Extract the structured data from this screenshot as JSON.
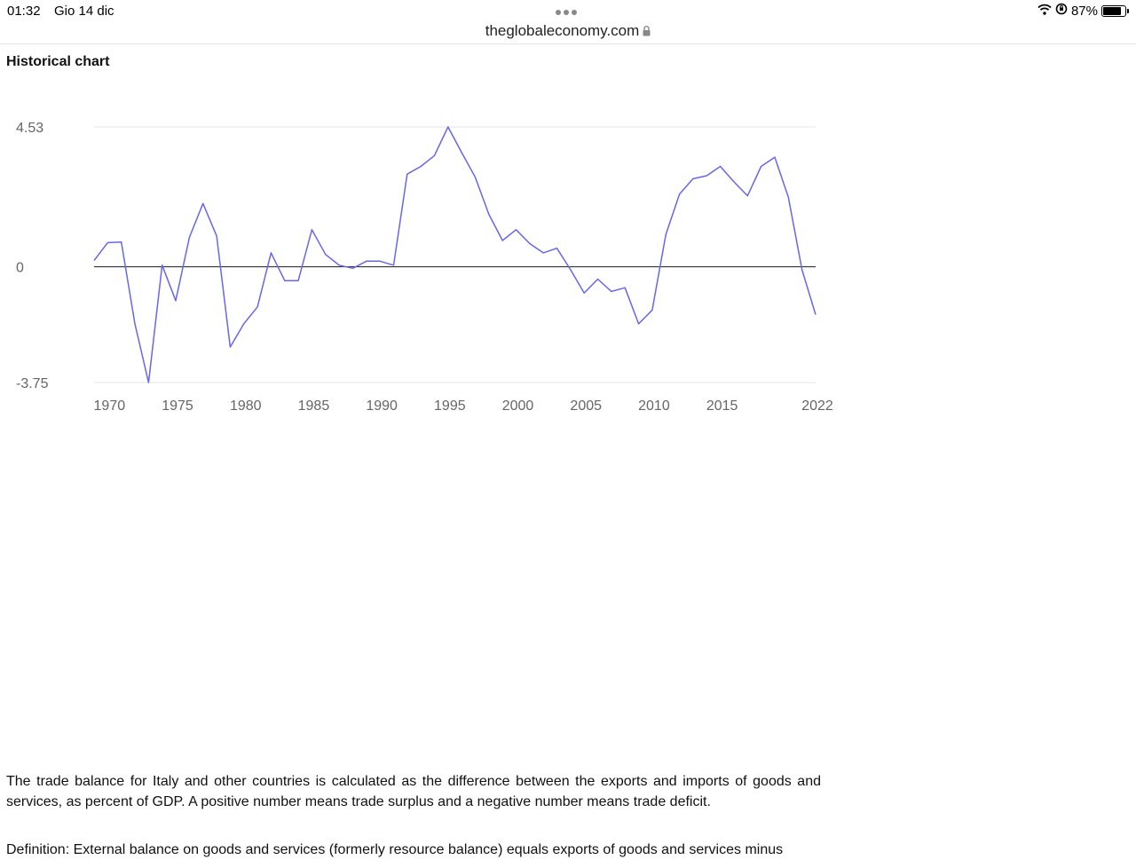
{
  "status_bar": {
    "time": "01:32",
    "date": "Gio 14 dic",
    "battery": "87%",
    "battery_level": 0.87
  },
  "browser": {
    "url": "theglobaleconomy.com"
  },
  "section": {
    "title": "Historical chart"
  },
  "chart_data": {
    "type": "line",
    "title": "",
    "xlabel": "",
    "ylabel": "",
    "ylim": [
      -3.75,
      4.53
    ],
    "y_ticks": [
      "4.53",
      "0",
      "-3.75"
    ],
    "x_ticks": [
      "1970",
      "1975",
      "1980",
      "1985",
      "1990",
      "1995",
      "2000",
      "2005",
      "2010",
      "2015",
      "2022"
    ],
    "grid": true,
    "zero_line": true,
    "line_color": "#6666ee",
    "series": [
      {
        "x": [
          1969,
          1970,
          1971,
          1972,
          1973,
          1974,
          1975,
          1976,
          1977,
          1978,
          1979,
          1980,
          1981,
          1982,
          1983,
          1984,
          1985,
          1986,
          1987,
          1988,
          1989,
          1990,
          1991,
          1992,
          1993,
          1994,
          1995,
          1996,
          1997,
          1998,
          1999,
          2000,
          2001,
          2002,
          2003,
          2004,
          2005,
          2006,
          2007,
          2008,
          2009,
          2010,
          2011,
          2012,
          2013,
          2014,
          2015,
          2016,
          2017,
          2018,
          2019,
          2020,
          2021,
          2022
        ],
        "values": [
          0.2,
          0.78,
          0.8,
          -1.85,
          -3.75,
          0.05,
          -1.1,
          0.95,
          2.05,
          1.0,
          -2.6,
          -1.85,
          -1.3,
          0.45,
          -0.45,
          -0.45,
          1.2,
          0.4,
          0.05,
          -0.05,
          0.18,
          0.18,
          0.05,
          3.0,
          3.25,
          3.6,
          4.53,
          3.7,
          2.9,
          1.7,
          0.85,
          1.2,
          0.75,
          0.45,
          0.6,
          -0.1,
          -0.85,
          -0.4,
          -0.8,
          -0.68,
          -1.85,
          -1.4,
          1.05,
          2.35,
          2.85,
          2.95,
          3.25,
          2.75,
          2.3,
          3.25,
          3.55,
          2.25,
          -0.1,
          -1.55
        ]
      }
    ]
  },
  "description": {
    "paragraph1": "The trade balance for Italy and other countries is calculated as the difference between the exports and imports of goods and services, as percent of GDP. A positive number means trade surplus and a negative number means trade deficit.",
    "paragraph2": "Definition: External balance on goods and services (formerly resource balance) equals exports of goods and services minus"
  }
}
